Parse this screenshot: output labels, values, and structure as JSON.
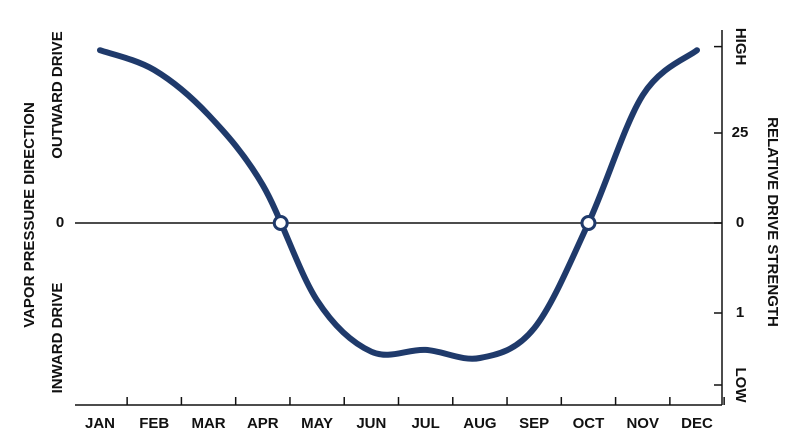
{
  "chart_data": {
    "type": "line",
    "categories": [
      "JAN",
      "FEB",
      "MAR",
      "APR",
      "MAY",
      "JUN",
      "JUL",
      "AUG",
      "SEP",
      "OCT",
      "NOV",
      "DEC"
    ],
    "values": [
      1.92,
      1.7,
      1.2,
      0.42,
      -0.86,
      -1.43,
      -1.41,
      -1.5,
      -1.17,
      0,
      1.42,
      1.92
    ],
    "color": "#1f3a6b",
    "markers": {
      "x": [
        3.33,
        9
      ],
      "values": [
        0,
        0
      ]
    },
    "ylabel": "VAPOR PRESSURE DIRECTION",
    "ylim": [
      -2,
      2
    ],
    "yticks": [
      0
    ],
    "y_region_labels": [
      "OUTWARD DRIVE",
      "INWARD DRIVE"
    ],
    "y2label": "RELATIVE DRIVE STRENGTH",
    "y2lim": [
      -2,
      2
    ],
    "y2ticks": [
      {
        "value": 1.96,
        "label": "HIGH"
      },
      {
        "value": 1,
        "label": "25"
      },
      0,
      {
        "value": -1,
        "label": "1"
      },
      {
        "value": -1.8,
        "label": "LOW"
      }
    ]
  }
}
